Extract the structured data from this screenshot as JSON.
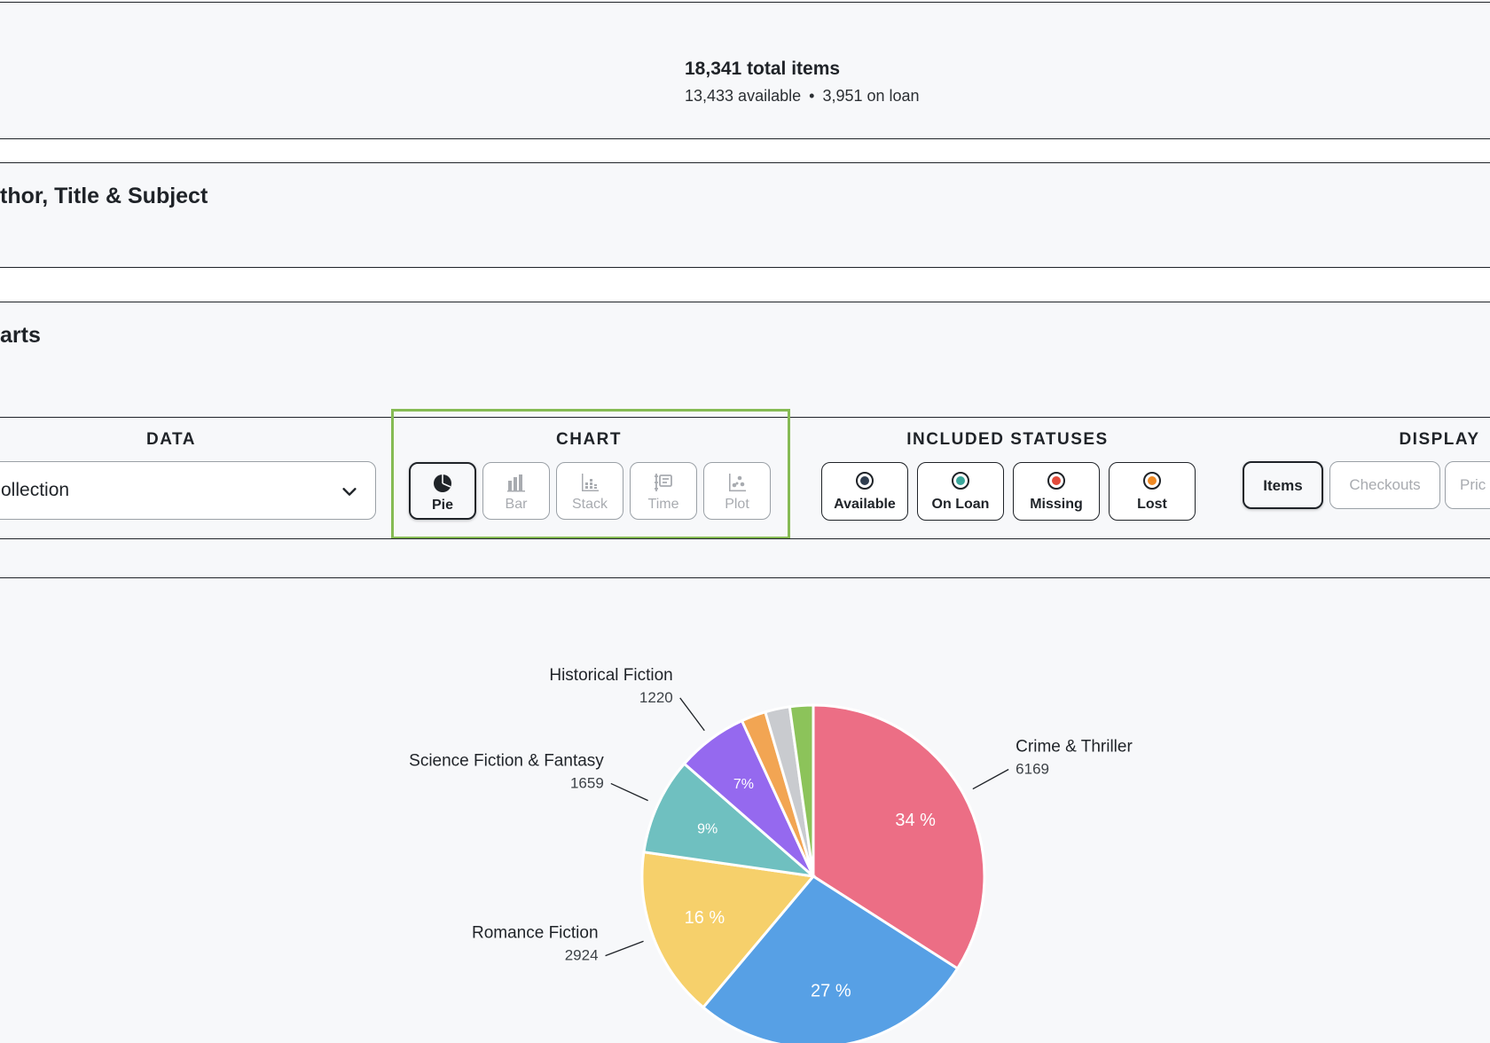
{
  "summary": {
    "total_items": "18,341 total items",
    "available_text": "13,433 available",
    "separator": "•",
    "on_loan_text": "3,951 on loan"
  },
  "sections": {
    "search_title": "thor, Title & Subject",
    "charts_title": "arts"
  },
  "controls": {
    "data": {
      "label": "DATA",
      "selected": "ollection"
    },
    "chart": {
      "label": "CHART",
      "options": [
        {
          "label": "Pie",
          "icon": "pie-icon",
          "active": true
        },
        {
          "label": "Bar",
          "icon": "bar-icon",
          "active": false
        },
        {
          "label": "Stack",
          "icon": "stack-icon",
          "active": false
        },
        {
          "label": "Time",
          "icon": "time-icon",
          "active": false
        },
        {
          "label": "Plot",
          "icon": "plot-icon",
          "active": false
        }
      ]
    },
    "statuses": {
      "label": "INCLUDED STATUSES",
      "options": [
        {
          "label": "Available",
          "color": "#2f3d4f"
        },
        {
          "label": "On Loan",
          "color": "#3aa89c"
        },
        {
          "label": "Missing",
          "color": "#e24a3b"
        },
        {
          "label": "Lost",
          "color": "#f08a24"
        }
      ]
    },
    "display": {
      "label": "DISPLAY",
      "options": [
        {
          "label": "Items",
          "active": true
        },
        {
          "label": "Checkouts",
          "active": false
        },
        {
          "label": "Pric",
          "active": false
        }
      ]
    }
  },
  "chart_data": {
    "type": "pie",
    "slices": [
      {
        "name": "Crime & Thriller",
        "value": 6169,
        "percent": "34 %",
        "color": "#ec6e85",
        "show_label": true,
        "show_pct": true
      },
      {
        "name": "",
        "value": 4900,
        "percent": "27 %",
        "color": "#57a0e5",
        "show_label": false,
        "show_pct": true
      },
      {
        "name": "Romance Fiction",
        "value": 2924,
        "percent": "16 %",
        "color": "#f6d06b",
        "show_label": true,
        "show_pct": true
      },
      {
        "name": "Science Fiction & Fantasy",
        "value": 1659,
        "percent": "9%",
        "color": "#6fc0c0",
        "show_label": true,
        "show_pct": true
      },
      {
        "name": "Historical Fiction",
        "value": 1220,
        "percent": "7%",
        "color": "#9569ef",
        "show_label": true,
        "show_pct": true
      },
      {
        "name": "",
        "value": 420,
        "percent": "",
        "color": "#f2a553",
        "show_label": false,
        "show_pct": false
      },
      {
        "name": "",
        "value": 420,
        "percent": "",
        "color": "#c9cbcf",
        "show_label": false,
        "show_pct": false
      },
      {
        "name": "",
        "value": 400,
        "percent": "",
        "color": "#8cc35a",
        "show_label": false,
        "show_pct": false
      }
    ]
  }
}
